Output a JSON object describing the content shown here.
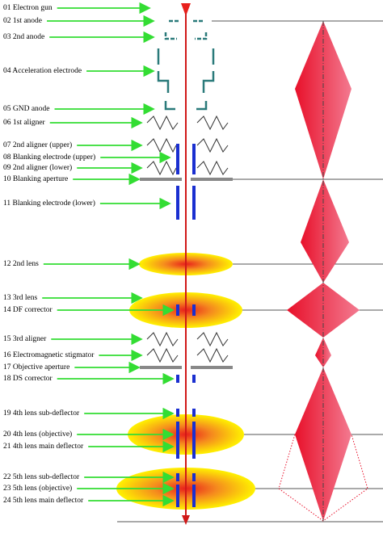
{
  "labels": [
    "01 Electron gun",
    "02 1st anode",
    "03 2nd anode",
    "04 Acceleration electrode",
    "05 GND anode",
    "06 1st aligner",
    "07 2nd aligner (upper)",
    "08 Blanking electrode (upper)",
    "09 2nd aligner (lower)",
    "10 Blanking aperture",
    "11 Blanking electrode (lower)",
    "12 2nd lens",
    "13 3rd lens",
    "14 DF corrector",
    "15 3rd aligner",
    "16 Electromagnetic stigmator",
    "17 Objective aperture",
    "18 DS corrector",
    "19 4th lens sub-deflector",
    "20 4th lens (objective)",
    "21 4th lens main deflector",
    "22 5th lens sub-deflector",
    "23 5th lens (objective)",
    "24 5th lens main deflector"
  ]
}
